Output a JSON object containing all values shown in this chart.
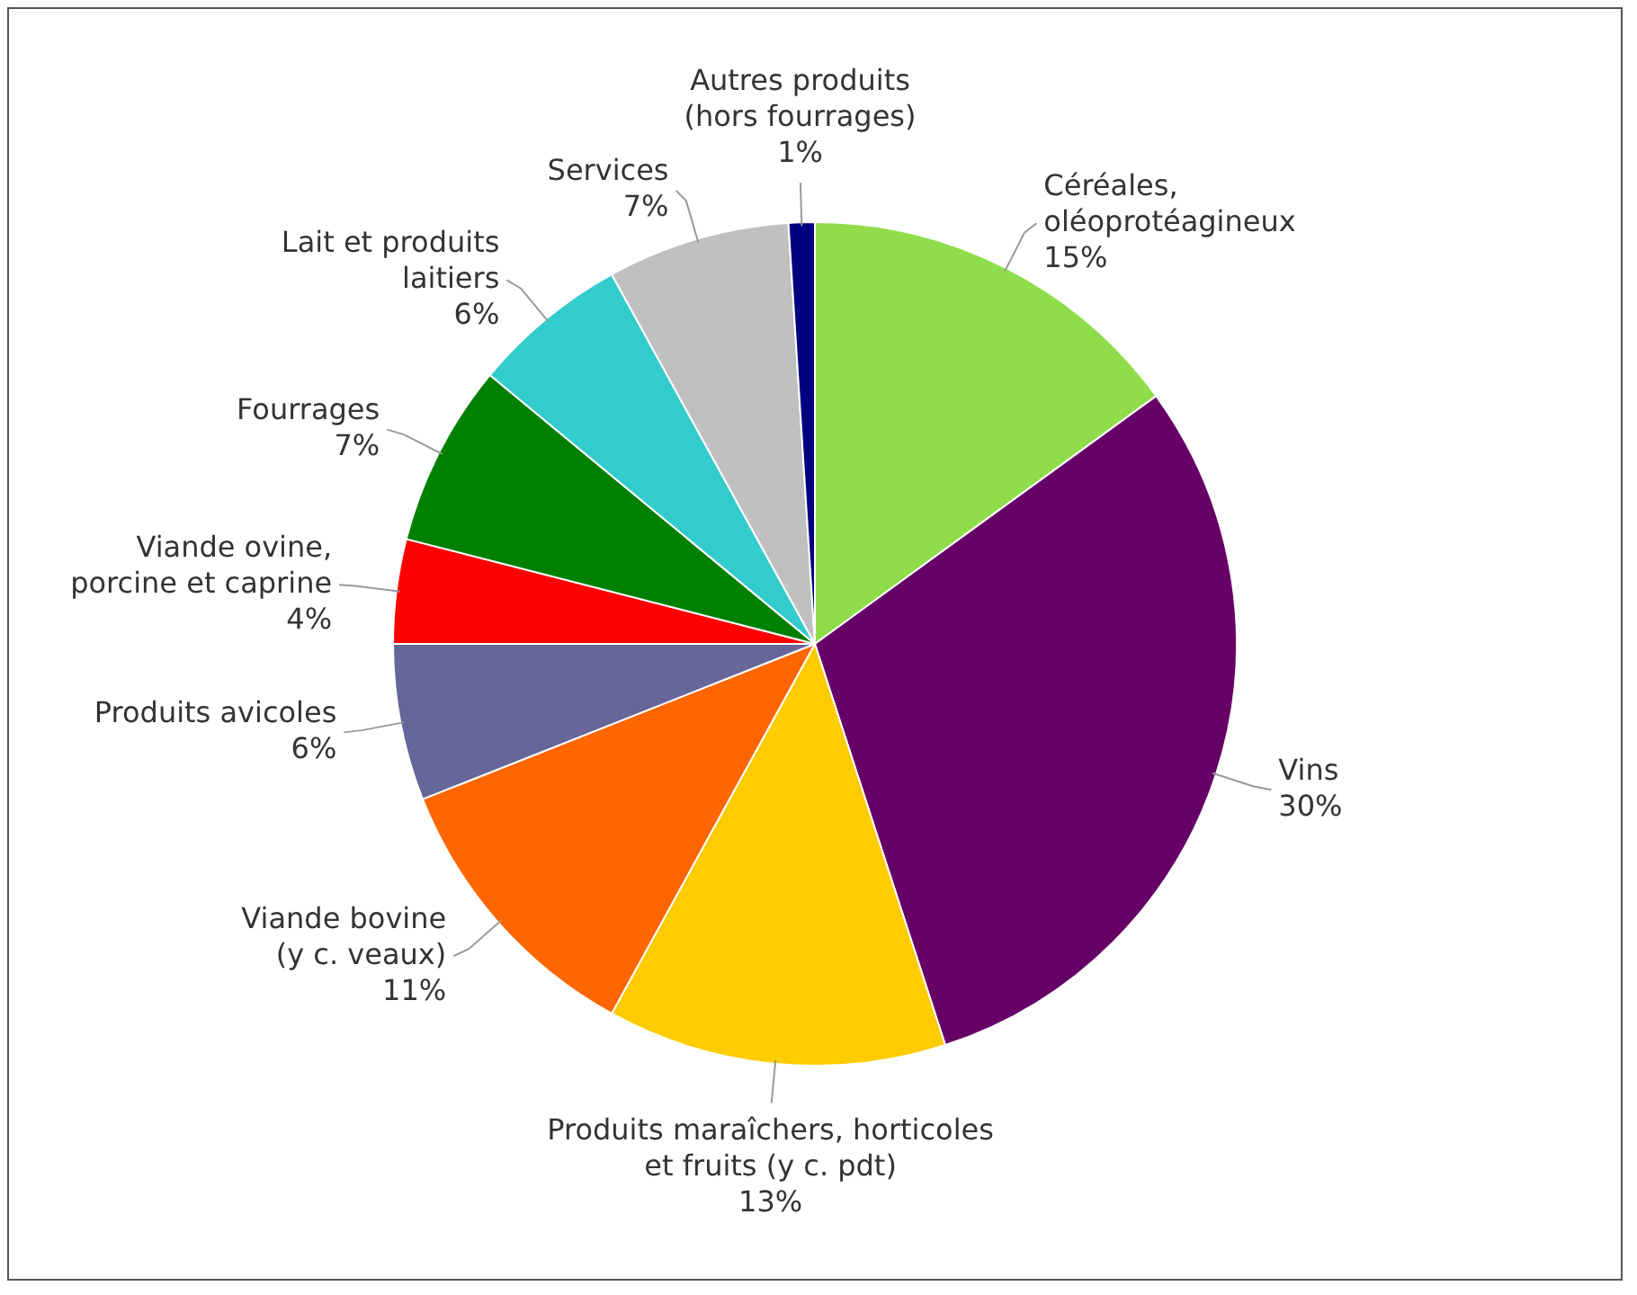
{
  "chart_data": {
    "type": "pie",
    "categories": [
      "Céréales,\noléoprotéagineux",
      "Vins",
      "Produits maraîchers, horticoles\net fruits (y c. pdt)",
      "Viande bovine\n(y c. veaux)",
      "Produits avicoles",
      "Viande ovine,\nporcine et caprine",
      "Fourrages",
      "Lait et produits\nlaitiers",
      "Services",
      "Autres produits\n(hors fourrages)"
    ],
    "values": [
      15,
      30,
      13,
      11,
      6,
      4,
      7,
      6,
      7,
      1
    ],
    "colors": [
      "#8fdd4a",
      "#660066",
      "#ffcc00",
      "#ff6600",
      "#666699",
      "#ff0000",
      "#008000",
      "#33cccc",
      "#c0c0c0",
      "#000080"
    ],
    "value_labels": [
      "15%",
      "30%",
      "13%",
      "11%",
      "6%",
      "4%",
      "7%",
      "6%",
      "7%",
      "1%"
    ],
    "legend": false
  }
}
